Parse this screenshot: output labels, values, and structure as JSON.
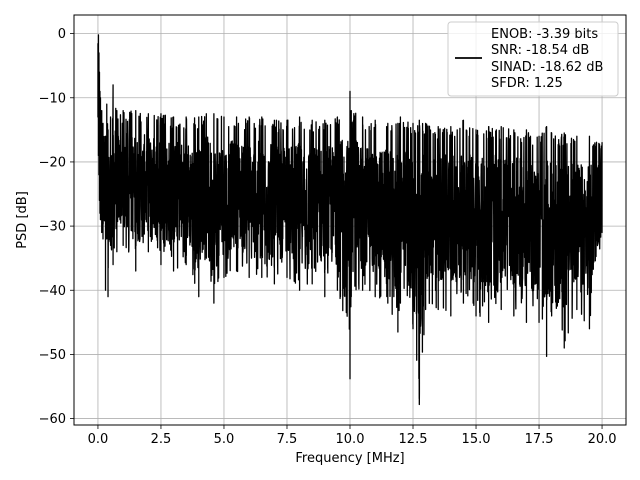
{
  "chart_data": {
    "type": "line",
    "xlabel": "Frequency [MHz]",
    "ylabel": "PSD [dB]",
    "xlim": [
      -0.95,
      20.95
    ],
    "ylim": [
      -61,
      2.9
    ],
    "x_ticks": [
      0.0,
      2.5,
      5.0,
      7.5,
      10.0,
      12.5,
      15.0,
      17.5,
      20.0
    ],
    "x_tick_labels": [
      "0.0",
      "2.5",
      "5.0",
      "7.5",
      "10.0",
      "12.5",
      "15.0",
      "17.5",
      "20.0"
    ],
    "y_ticks": [
      0,
      -10,
      -20,
      -30,
      -40,
      -50,
      -60
    ],
    "y_tick_labels": [
      "0",
      "−10",
      "−20",
      "−30",
      "−40",
      "−50",
      "−60"
    ],
    "grid": true,
    "legend_position": "top-right",
    "legend_lines": [
      "ENOB: -3.39 bits",
      "SNR: -18.54 dB",
      "SINAD: -18.62 dB",
      "SFDR: 1.25"
    ],
    "series": [
      {
        "color": "#000000",
        "description_of_shape": "dense noise-floor spectrum around -22 dB with spikes",
        "x": [
          0.0,
          0.02,
          0.04,
          0.06,
          0.08,
          0.1,
          0.15,
          0.2,
          0.3,
          0.35,
          0.4,
          0.5,
          0.6,
          0.75,
          1.0,
          1.5,
          2.0,
          2.5,
          3.0,
          3.5,
          4.0,
          4.3,
          4.6,
          5.0,
          5.5,
          6.0,
          6.5,
          7.0,
          7.5,
          8.0,
          8.5,
          9.0,
          9.5,
          10.0,
          10.05,
          10.5,
          11.0,
          11.5,
          11.9,
          12.0,
          12.5,
          12.75,
          13.0,
          13.5,
          14.0,
          14.5,
          15.0,
          15.5,
          16.0,
          16.5,
          17.0,
          17.5,
          17.8,
          18.0,
          18.5,
          19.0,
          19.5,
          20.0
        ],
        "upper": [
          -1.5,
          -0.2,
          -3,
          -6,
          -9,
          -10,
          -12,
          -14,
          -16,
          -11,
          -15,
          -13,
          -8,
          -12,
          -12,
          -12,
          -12.5,
          -12.5,
          -13,
          -13,
          -13,
          -12.5,
          -12.5,
          -13,
          -13,
          -13,
          -13,
          -13.5,
          -13.5,
          -13,
          -13.5,
          -13.5,
          -13,
          -9,
          -12,
          -13,
          -13.5,
          -14,
          -14,
          -13,
          -14,
          -13.5,
          -14,
          -14.5,
          -14.5,
          -13.5,
          -15,
          -14.5,
          -14.5,
          -15,
          -15,
          -16,
          -14.5,
          -15.5,
          -15.5,
          -16,
          -16,
          -17
        ],
        "lower": [
          -13,
          -19,
          -22,
          -26,
          -28,
          -29,
          -31,
          -32,
          -40,
          -32,
          -41,
          -33,
          -36,
          -34,
          -33,
          -37,
          -34,
          -36,
          -37,
          -36,
          -41,
          -35,
          -42,
          -38,
          -37,
          -38,
          -38,
          -39,
          -38,
          -40,
          -39,
          -41,
          -40,
          -53.8,
          -41,
          -40,
          -41,
          -42,
          -46.5,
          -42,
          -46,
          -57.8,
          -43,
          -43,
          -44,
          -42,
          -44,
          -45,
          -43,
          -44,
          -45,
          -45,
          -50.3,
          -44,
          -49,
          -43,
          -46,
          -31
        ]
      }
    ]
  }
}
